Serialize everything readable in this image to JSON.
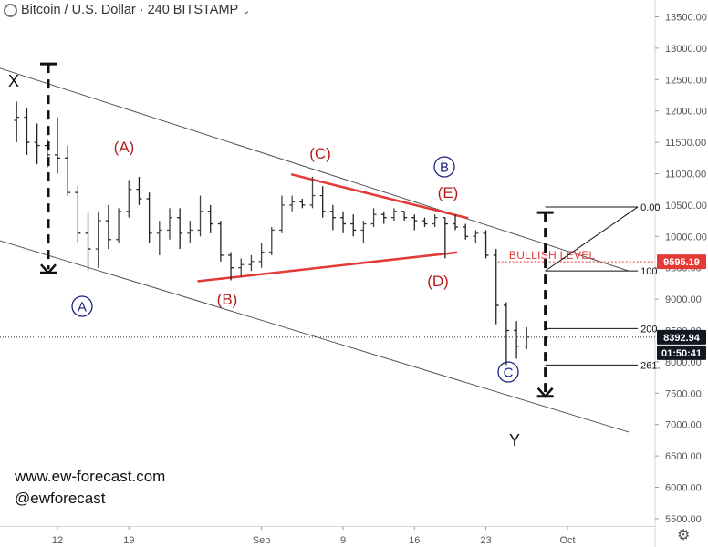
{
  "header": {
    "title": "Bitcoin / U.S. Dollar",
    "separator": "·",
    "interval": "240",
    "exchange": "BITSTAMP"
  },
  "watermark": {
    "site": "www.ew-forecast.com",
    "handle": "@ewforecast"
  },
  "chart_data": {
    "type": "candlestick",
    "y_ticks": [
      "13500.00",
      "13000.00",
      "12500.00",
      "12000.00",
      "11500.00",
      "11000.00",
      "10500.00",
      "10000.00",
      "9500.00",
      "9000.00",
      "8500.00",
      "8000.00",
      "7500.00",
      "7000.00",
      "6500.00",
      "6000.00",
      "5500.00"
    ],
    "x_ticks": [
      "12",
      "19",
      "Sep",
      "9",
      "16",
      "23",
      "Oct"
    ],
    "ylim": [
      5400,
      13750
    ],
    "price_labels": {
      "level": "9595.19",
      "last": "8392.94",
      "countdown": "01:50:41",
      "level_color": "#e53935",
      "last_color": "#131722"
    },
    "series": [
      {
        "values": [
          [
            "Aug 8",
            11850,
            12150,
            11500,
            11900
          ],
          [
            "Aug 9",
            11900,
            12050,
            11300,
            11500
          ],
          [
            "Aug 10",
            11500,
            11800,
            11150,
            11450
          ],
          [
            "Aug 11",
            11450,
            11550,
            11100,
            11300
          ],
          [
            "Aug 12",
            11300,
            11900,
            11000,
            11250
          ],
          [
            "Aug 13",
            11250,
            11450,
            10650,
            10700
          ],
          [
            "Aug 14",
            10700,
            10800,
            9900,
            10050
          ],
          [
            "Aug 15",
            10050,
            10400,
            9450,
            9800
          ],
          [
            "Aug 16",
            9800,
            10400,
            9500,
            10250
          ],
          [
            "Aug 17",
            10250,
            10500,
            9800,
            9950
          ],
          [
            "Aug 18",
            9950,
            10450,
            9900,
            10400
          ],
          [
            "Aug 19",
            10400,
            10900,
            10300,
            10750
          ],
          [
            "Aug 20",
            10750,
            10950,
            10500,
            10600
          ],
          [
            "Aug 21",
            10600,
            10700,
            9900,
            10050
          ],
          [
            "Aug 22",
            10050,
            10250,
            9700,
            10100
          ],
          [
            "Aug 23",
            10100,
            10450,
            9950,
            10300
          ],
          [
            "Aug 24",
            10300,
            10450,
            9800,
            10050
          ],
          [
            "Aug 25",
            10050,
            10250,
            9900,
            10100
          ],
          [
            "Aug 26",
            10100,
            10650,
            10000,
            10400
          ],
          [
            "Aug 27",
            10400,
            10500,
            10050,
            10200
          ],
          [
            "Aug 28",
            10200,
            10250,
            9600,
            9700
          ],
          [
            "Aug 29",
            9700,
            9750,
            9300,
            9500
          ],
          [
            "Aug 30",
            9500,
            9650,
            9350,
            9550
          ],
          [
            "Aug 31",
            9550,
            9700,
            9450,
            9600
          ],
          [
            "Sep 1",
            9600,
            9900,
            9500,
            9750
          ],
          [
            "Sep 2",
            9750,
            10150,
            9700,
            10100
          ],
          [
            "Sep 3",
            10100,
            10650,
            10050,
            10500
          ],
          [
            "Sep 4",
            10500,
            10650,
            10400,
            10550
          ],
          [
            "Sep 5",
            10550,
            10600,
            10450,
            10500
          ],
          [
            "Sep 6",
            10500,
            10950,
            10450,
            10650
          ],
          [
            "Sep 7",
            10650,
            10800,
            10300,
            10400
          ],
          [
            "Sep 8",
            10400,
            10500,
            10100,
            10300
          ],
          [
            "Sep 9",
            10300,
            10400,
            10050,
            10200
          ],
          [
            "Sep 10",
            10200,
            10350,
            10000,
            10100
          ],
          [
            "Sep 11",
            10100,
            10250,
            9900,
            10200
          ],
          [
            "Sep 12",
            10200,
            10450,
            10150,
            10350
          ],
          [
            "Sep 13",
            10350,
            10400,
            10200,
            10300
          ],
          [
            "Sep 14",
            10300,
            10450,
            10250,
            10400
          ],
          [
            "Sep 15",
            10400,
            10400,
            10250,
            10300
          ],
          [
            "Sep 16",
            10300,
            10350,
            10100,
            10250
          ],
          [
            "Sep 17",
            10250,
            10300,
            10150,
            10200
          ],
          [
            "Sep 18",
            10200,
            10350,
            10150,
            10300
          ],
          [
            "Sep 19",
            10300,
            10300,
            9650,
            10200
          ],
          [
            "Sep 20",
            10200,
            10350,
            10100,
            10150
          ],
          [
            "Sep 21",
            10150,
            10200,
            9950,
            10000
          ],
          [
            "Sep 22",
            10000,
            10100,
            9900,
            10050
          ],
          [
            "Sep 23",
            10050,
            10100,
            9650,
            9700
          ],
          [
            "Sep 24",
            9700,
            9800,
            8600,
            8900
          ],
          [
            "Sep 25",
            8900,
            8950,
            7950,
            8500
          ],
          [
            "Sep 26",
            8500,
            8650,
            8050,
            8250
          ],
          [
            "Sep 27",
            8250,
            8550,
            8200,
            8393
          ]
        ]
      }
    ]
  },
  "annotations": {
    "labels": [
      "X",
      "(A)",
      "(B)",
      "(C)",
      "B",
      "(E)",
      "(D)",
      "A",
      "C",
      "Y"
    ],
    "bullish_level": "BULLISH LEVEL",
    "fib_labels": [
      "0.00",
      "100.",
      "200.",
      "261."
    ],
    "label_color": "#b71c1c",
    "circle_color": "#1a237e",
    "line_color": "#e53935"
  }
}
